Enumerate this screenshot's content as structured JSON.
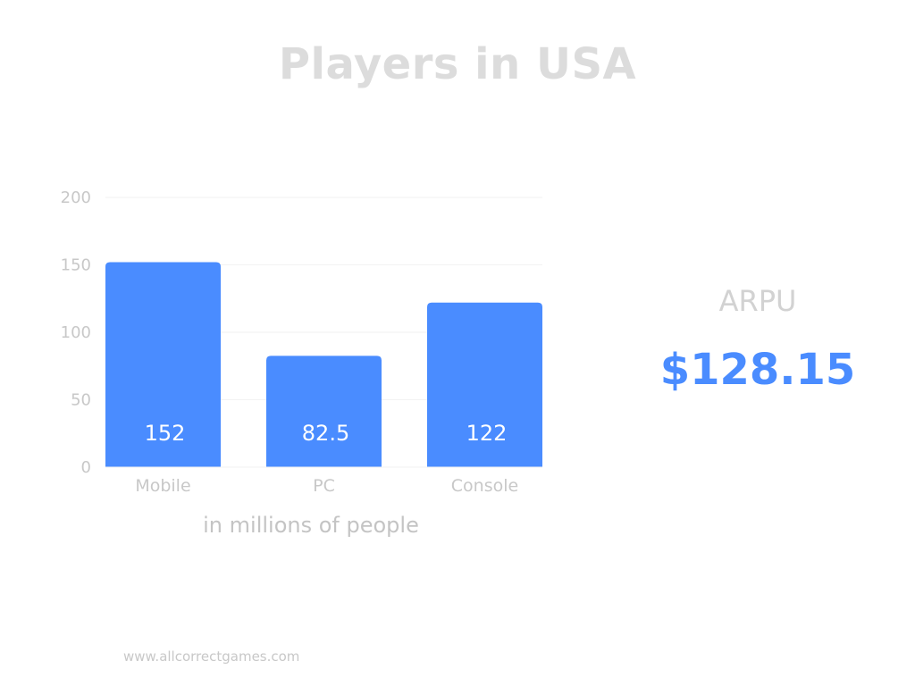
{
  "title": "Players in USA",
  "subtitle": "in millions of people",
  "arpu": {
    "label": "ARPU",
    "value": "$128.15"
  },
  "footer": "www.allcorrectgames.com",
  "colors": {
    "bar": "#4a8cff",
    "accent": "#4a8cff",
    "muted_text": "#c8c8c8",
    "gridline": "#f2f2f2",
    "bar_label": "#ffffff"
  },
  "chart_data": {
    "type": "bar",
    "categories": [
      "Mobile",
      "PC",
      "Console"
    ],
    "values": [
      152,
      82.5,
      122
    ],
    "data_labels": [
      "152",
      "82.5",
      "122"
    ],
    "yticks": [
      0,
      50,
      100,
      150,
      200
    ],
    "ylim": [
      0,
      200
    ],
    "xlabel": "in millions of people",
    "grid": true,
    "legend": "none"
  }
}
